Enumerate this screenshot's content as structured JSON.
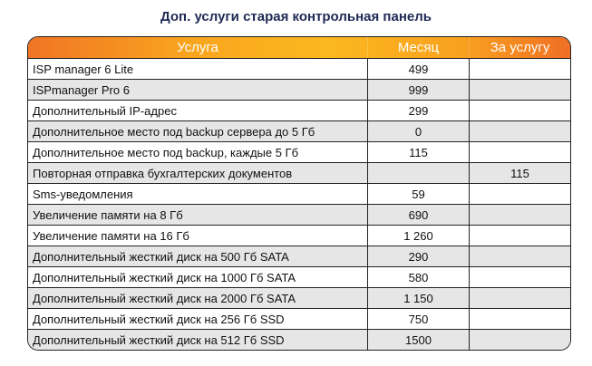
{
  "title": "Доп. услуги старая контрольная панель",
  "headers": [
    "Услуга",
    "Месяц",
    "За услугу"
  ],
  "rows": [
    [
      "ISP manager 6 Lite",
      "499",
      ""
    ],
    [
      "ISPmanager Pro 6",
      "999",
      ""
    ],
    [
      "Дополнительный IP-адрес",
      "299",
      ""
    ],
    [
      "Дополнительное место под backup сервера до 5 Гб",
      "0",
      ""
    ],
    [
      "Дополнительное место под backup, каждые 5 Гб",
      "115",
      ""
    ],
    [
      "Повторная отправка бухгалтерских документов",
      "",
      "115"
    ],
    [
      "Sms-уведомления",
      "59",
      ""
    ],
    [
      "Увеличение памяти на 8 Гб",
      "690",
      ""
    ],
    [
      "Увеличение памяти на 16 Гб",
      "1 260",
      ""
    ],
    [
      "Дополнительный жесткий диск на 500 Гб SATA",
      "290",
      ""
    ],
    [
      "Дополнительный жесткий диск на 1000 Гб SATA",
      "580",
      ""
    ],
    [
      "Дополнительный жесткий диск на 2000 Гб SATA",
      "1 150",
      ""
    ],
    [
      "Дополнительный жесткий диск на 256 Гб SSD",
      "750",
      ""
    ],
    [
      "Дополнительный жесткий диск на 512 Гб SSD",
      "1500",
      ""
    ]
  ]
}
